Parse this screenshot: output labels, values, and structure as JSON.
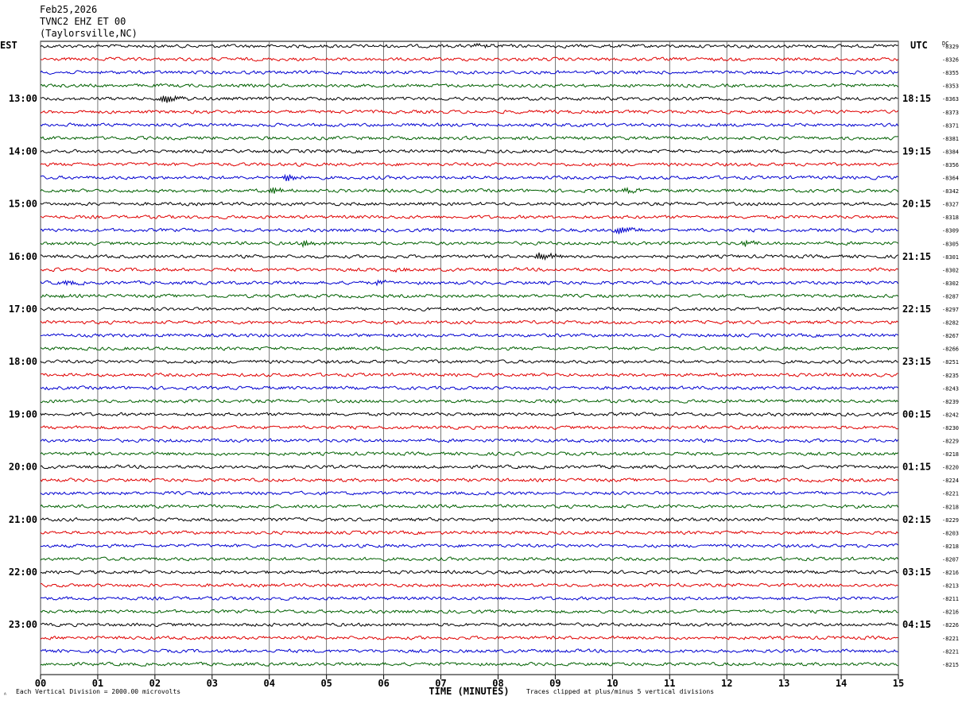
{
  "header": {
    "date": "Feb25,2026",
    "station": "TVNC2 EHZ ET 00",
    "location": "(Taylorsville,NC)"
  },
  "footer": {
    "scale_note": "Each Vertical Division = 2000.00 microvolts",
    "clip_note": "Traces clipped at plus/minus 5 vertical divisions",
    "corner_mark": "ᴬ"
  },
  "colors": {
    "trace_cycle": [
      "#000000",
      "#e00000",
      "#0000d0",
      "#006000"
    ],
    "grid": "#000000",
    "background": "#ffffff"
  },
  "chart_data": {
    "type": "line",
    "title": "Feb25,2026 TVNC2 EHZ ET 00 (Taylorsville,NC)",
    "xlabel": "TIME (MINUTES)",
    "left_axis_label": "EST",
    "right_axis_label": "UTC",
    "dc_label": "DC",
    "x_ticks": [
      "00",
      "01",
      "02",
      "03",
      "04",
      "05",
      "06",
      "07",
      "08",
      "09",
      "10",
      "11",
      "12",
      "13",
      "14",
      "15"
    ],
    "xlim": [
      0,
      15
    ],
    "grid": true,
    "lines_per_hour": 4,
    "left_times": [
      "13:00",
      "14:00",
      "15:00",
      "16:00",
      "17:00",
      "18:00",
      "19:00",
      "20:00",
      "21:00",
      "22:00",
      "23:00"
    ],
    "right_times": [
      "18:15",
      "19:15",
      "20:15",
      "21:15",
      "22:15",
      "23:15",
      "00:15",
      "01:15",
      "02:15",
      "03:15",
      "04:15"
    ],
    "dc_offsets": [
      -8329,
      -8326,
      -8355,
      -8353,
      -8363,
      -8373,
      -8371,
      -8381,
      -8384,
      -8356,
      -8364,
      -8342,
      -8327,
      -8318,
      -8309,
      -8305,
      -8301,
      -8302,
      -8302,
      -8287,
      -8297,
      -8282,
      -8267,
      -8266,
      -8251,
      -8235,
      -8243,
      -8239,
      -8242,
      -8230,
      -8229,
      -8218,
      -8220,
      -8224,
      -8221,
      -8218,
      -8229,
      -8203,
      -8218,
      -8207,
      -8216,
      -8213,
      -8211,
      -8216,
      -8226,
      -8221,
      -8221,
      -8215
    ],
    "events": [
      {
        "trace": 0,
        "minute": 7.55,
        "amplitude": 8
      },
      {
        "trace": 4,
        "minute": 2.15,
        "amplitude": 5
      },
      {
        "trace": 10,
        "minute": 4.3,
        "amplitude": 4
      },
      {
        "trace": 11,
        "minute": 4.05,
        "amplitude": 3
      },
      {
        "trace": 11,
        "minute": 10.2,
        "amplitude": 3
      },
      {
        "trace": 14,
        "minute": 10.1,
        "amplitude": 4
      },
      {
        "trace": 15,
        "minute": 4.6,
        "amplitude": 3
      },
      {
        "trace": 15,
        "minute": 12.3,
        "amplitude": 3
      },
      {
        "trace": 16,
        "minute": 8.7,
        "amplitude": 7
      },
      {
        "trace": 17,
        "minute": 6.2,
        "amplitude": 4
      },
      {
        "trace": 18,
        "minute": 0.4,
        "amplitude": 4
      },
      {
        "trace": 18,
        "minute": 5.9,
        "amplitude": 4
      },
      {
        "trace": 19,
        "minute": 0.15,
        "amplitude": 4
      }
    ]
  }
}
